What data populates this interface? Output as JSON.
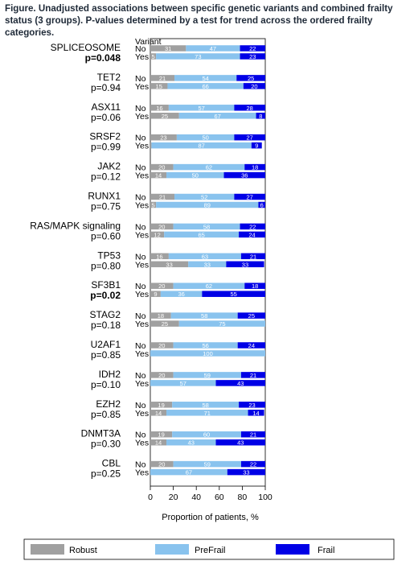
{
  "caption": "Figure. Unadjusted associations between specific genetic variants and combined frailty status (3 groups). P-values determined by a test for trend across the ordered frailty categories.",
  "colors": {
    "Robust": "#a0a0a0",
    "PreFrail": "#89c3ee",
    "Frail": "#0000e6"
  },
  "chart_data": {
    "type": "bar",
    "orientation": "horizontal",
    "stacked": true,
    "variant_header": "Variant",
    "xlabel": "Proportion of patients, %",
    "xlim": [
      0,
      100
    ],
    "xticks": [
      "0",
      "20",
      "40",
      "60",
      "80",
      "100"
    ],
    "legend": [
      "Robust",
      "PreFrail",
      "Frail"
    ],
    "legend_position": "bottom",
    "groups": [
      {
        "gene": "SPLICEOSOME",
        "p": "p=0.048",
        "bold": true,
        "rows": [
          {
            "v": "No",
            "robust": 31,
            "prefrail": 47,
            "frail": 22
          },
          {
            "v": "Yes",
            "robust": 5,
            "prefrail": 73,
            "frail": 23
          }
        ]
      },
      {
        "gene": "TET2",
        "p": "p=0.94",
        "bold": false,
        "rows": [
          {
            "v": "No",
            "robust": 21,
            "prefrail": 54,
            "frail": 25
          },
          {
            "v": "Yes",
            "robust": 15,
            "prefrail": 66,
            "frail": 20
          }
        ]
      },
      {
        "gene": "ASX11",
        "p": "p=0.06",
        "bold": false,
        "rows": [
          {
            "v": "No",
            "robust": 16,
            "prefrail": 57,
            "frail": 28
          },
          {
            "v": "Yes",
            "robust": 25,
            "prefrail": 67,
            "frail": 8
          }
        ]
      },
      {
        "gene": "SRSF2",
        "p": "p=0.99",
        "bold": false,
        "rows": [
          {
            "v": "No",
            "robust": 23,
            "prefrail": 50,
            "frail": 27
          },
          {
            "v": "Yes",
            "robust": 1,
            "prefrail": 87,
            "frail": 9
          }
        ]
      },
      {
        "gene": "JAK2",
        "p": "p=0.12",
        "bold": false,
        "rows": [
          {
            "v": "No",
            "robust": 20,
            "prefrail": 62,
            "frail": 18
          },
          {
            "v": "Yes",
            "robust": 14,
            "prefrail": 50,
            "frail": 36
          }
        ]
      },
      {
        "gene": "RUNX1",
        "p": "p=0.75",
        "bold": false,
        "rows": [
          {
            "v": "No",
            "robust": 21,
            "prefrail": 52,
            "frail": 27
          },
          {
            "v": "Yes",
            "robust": 5,
            "prefrail": 89,
            "frail": 6
          }
        ]
      },
      {
        "gene": "RAS/MAPK signaling",
        "p": "p=0.60",
        "bold": false,
        "rows": [
          {
            "v": "No",
            "robust": 20,
            "prefrail": 58,
            "frail": 22
          },
          {
            "v": "Yes",
            "robust": 12,
            "prefrail": 65,
            "frail": 24
          }
        ]
      },
      {
        "gene": "TP53",
        "p": "p=0.80",
        "bold": false,
        "rows": [
          {
            "v": "No",
            "robust": 16,
            "prefrail": 63,
            "frail": 21
          },
          {
            "v": "Yes",
            "robust": 33,
            "prefrail": 33,
            "frail": 33
          }
        ]
      },
      {
        "gene": "SF3B1",
        "p": "p=0.02",
        "bold": true,
        "rows": [
          {
            "v": "No",
            "robust": 20,
            "prefrail": 62,
            "frail": 18
          },
          {
            "v": "Yes",
            "robust": 9,
            "prefrail": 36,
            "frail": 55
          }
        ]
      },
      {
        "gene": "STAG2",
        "p": "p=0.18",
        "bold": false,
        "rows": [
          {
            "v": "No",
            "robust": 18,
            "prefrail": 58,
            "frail": 25
          },
          {
            "v": "Yes",
            "robust": 25,
            "prefrail": 75,
            "frail": 0
          }
        ]
      },
      {
        "gene": "U2AF1",
        "p": "p=0.85",
        "bold": false,
        "rows": [
          {
            "v": "No",
            "robust": 20,
            "prefrail": 56,
            "frail": 24
          },
          {
            "v": "Yes",
            "robust": 0,
            "prefrail": 100,
            "frail": 0
          }
        ]
      },
      {
        "gene": "IDH2",
        "p": "p=0.10",
        "bold": false,
        "rows": [
          {
            "v": "No",
            "robust": 20,
            "prefrail": 59,
            "frail": 21
          },
          {
            "v": "Yes",
            "robust": 0,
            "prefrail": 57,
            "frail": 43
          }
        ]
      },
      {
        "gene": "EZH2",
        "p": "p=0.85",
        "bold": false,
        "rows": [
          {
            "v": "No",
            "robust": 19,
            "prefrail": 58,
            "frail": 23
          },
          {
            "v": "Yes",
            "robust": 14,
            "prefrail": 71,
            "frail": 14
          }
        ]
      },
      {
        "gene": "DNMT3A",
        "p": "p=0.30",
        "bold": false,
        "rows": [
          {
            "v": "No",
            "robust": 19,
            "prefrail": 60,
            "frail": 21
          },
          {
            "v": "Yes",
            "robust": 14,
            "prefrail": 43,
            "frail": 43
          }
        ]
      },
      {
        "gene": "CBL",
        "p": "p=0.25",
        "bold": false,
        "rows": [
          {
            "v": "No",
            "robust": 20,
            "prefrail": 59,
            "frail": 22
          },
          {
            "v": "Yes",
            "robust": 0,
            "prefrail": 67,
            "frail": 33
          }
        ]
      }
    ]
  }
}
